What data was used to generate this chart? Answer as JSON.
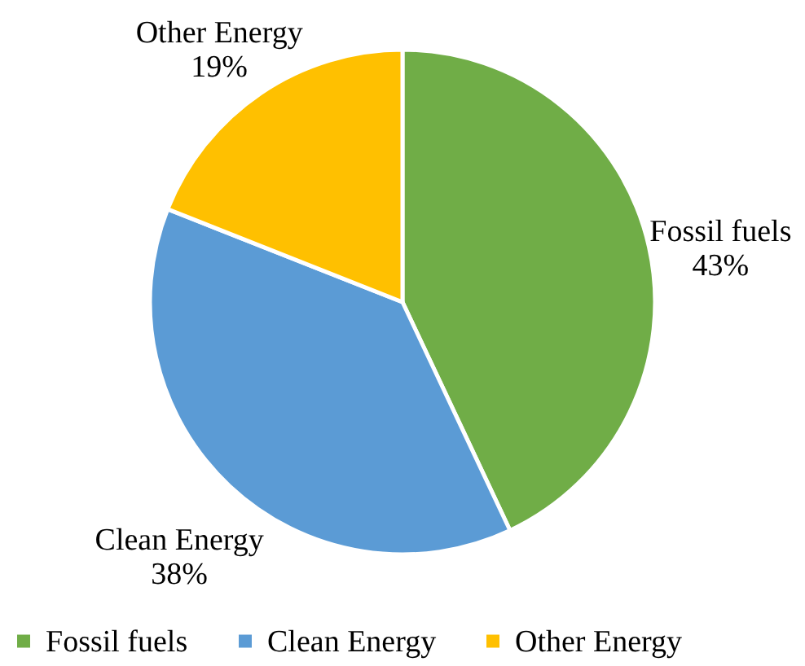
{
  "chart_data": {
    "type": "pie",
    "categories": [
      "Fossil fuels",
      "Clean Energy",
      "Other Energy"
    ],
    "values": [
      43,
      38,
      19
    ],
    "colors": [
      "#70ad47",
      "#5b9bd5",
      "#ffc000"
    ],
    "value_labels": [
      "43%",
      "38%",
      "19%"
    ],
    "legend": "bottom"
  }
}
